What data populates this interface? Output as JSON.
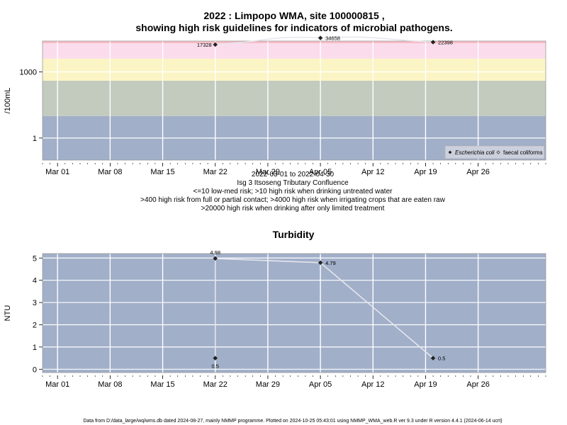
{
  "figure": {
    "title_line1": "2022 : Limpopo WMA, site 100000815 ,",
    "title_line2": "showing high risk guidelines for indicators of microbial pathogens.",
    "caption": [
      "2022-03-01 to 2022-04-30",
      "Isg 3 Itsoseng Tributary Confluence",
      "<=10 low-med risk; >10 high risk when drinking untreated water",
      ">400 high risk from full or partial contact; >4000 high risk when irrigating crops that are eaten raw",
      ">20000 high risk when drinking after only limited treatment"
    ],
    "footer": "Data from D:/data_large/wq/wms.db dated 2024-08-27, mainly NMMP programme. Plotted on 2024-10-25 05:43:01 using NMMP_WMA_web.R ver 9.3 under R version 4.4.1 (2024-06-14 ucrt)"
  },
  "chart_data": [
    {
      "type": "scatter",
      "title": "",
      "xlabel": "",
      "ylabel": "/100mL",
      "y_scale": "log10",
      "ylim": [
        0.1,
        25000
      ],
      "xlim": [
        "2022-02-27",
        "2022-05-05"
      ],
      "grid": true,
      "x_tick_labels": [
        "Mar 01",
        "Mar 08",
        "Mar 15",
        "Mar 22",
        "Mar 29",
        "Apr 05",
        "Apr 12",
        "Apr 19",
        "Apr 26"
      ],
      "x_tick_dates": [
        "2022-03-01",
        "2022-03-08",
        "2022-03-15",
        "2022-03-22",
        "2022-03-29",
        "2022-04-05",
        "2022-04-12",
        "2022-04-19",
        "2022-04-26"
      ],
      "y_tick_labels": [
        "1",
        "1000"
      ],
      "y_ticks": [
        1,
        1000
      ],
      "risk_bands": [
        {
          "from": 0.1,
          "to": 10,
          "color": "#a1afc9"
        },
        {
          "from": 10,
          "to": 400,
          "color": "#c3cbbf"
        },
        {
          "from": 400,
          "to": 4000,
          "color": "#fbf4c4"
        },
        {
          "from": 4000,
          "to": 20000,
          "color": "#fbdcec"
        },
        {
          "from": 20000,
          "to": 25000,
          "color": "#f8bcc6"
        }
      ],
      "series": [
        {
          "name": "Escherichia coli",
          "marker": "filled-diamond",
          "points": [
            {
              "x": "2022-03-22",
              "y": 17328,
              "label": "17328"
            },
            {
              "x": "2022-04-05",
              "y": 34658,
              "label": "34658"
            },
            {
              "x": "2022-04-20",
              "y": 22398,
              "label": "22398"
            }
          ]
        },
        {
          "name": "faecal coliforms",
          "marker": "open-diamond",
          "points": []
        }
      ],
      "legend_position": "bottom-right"
    },
    {
      "type": "line",
      "title": "Turbidity",
      "xlabel": "",
      "ylabel": "NTU",
      "ylim": [
        -0.15,
        5.2
      ],
      "xlim": [
        "2022-02-27",
        "2022-05-05"
      ],
      "grid": true,
      "background": "#a1afc9",
      "x_tick_labels": [
        "Mar 01",
        "Mar 08",
        "Mar 15",
        "Mar 22",
        "Mar 29",
        "Apr 05",
        "Apr 12",
        "Apr 19",
        "Apr 26"
      ],
      "x_tick_dates": [
        "2022-03-01",
        "2022-03-08",
        "2022-03-15",
        "2022-03-22",
        "2022-03-29",
        "2022-04-05",
        "2022-04-12",
        "2022-04-19",
        "2022-04-26"
      ],
      "y_tick_labels": [
        "0",
        "1",
        "2",
        "3",
        "4",
        "5"
      ],
      "y_ticks": [
        0,
        1,
        2,
        3,
        4,
        5
      ],
      "series": [
        {
          "name": "",
          "marker": "filled-diamond",
          "points": [
            {
              "x": "2022-03-22",
              "y": 0.5,
              "label": "0.5"
            },
            {
              "x": "2022-03-22",
              "y": 4.98,
              "label": "4.98"
            },
            {
              "x": "2022-04-05",
              "y": 4.79,
              "label": "4.79"
            },
            {
              "x": "2022-04-20",
              "y": 0.5,
              "label": "0.5"
            }
          ]
        }
      ]
    }
  ]
}
